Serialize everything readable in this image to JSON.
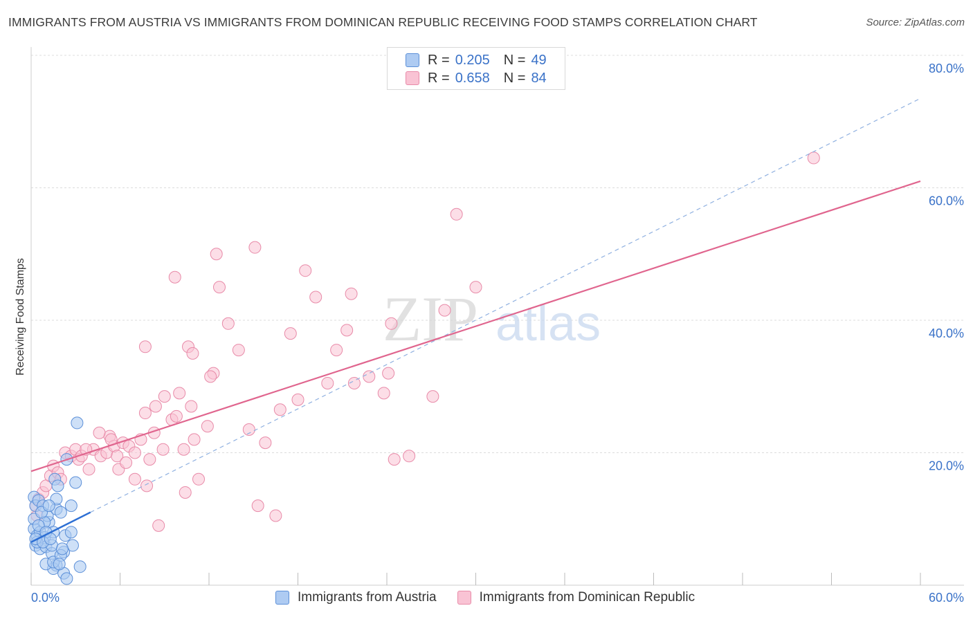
{
  "header": {
    "title": "IMMIGRANTS FROM AUSTRIA VS IMMIGRANTS FROM DOMINICAN REPUBLIC RECEIVING FOOD STAMPS CORRELATION CHART",
    "source": "Source: ZipAtlas.com"
  },
  "watermark": {
    "zip": "ZIP",
    "atlas": "atlas"
  },
  "legend_top": {
    "rows": [
      {
        "r_label": "R =",
        "r_value": "0.205",
        "n_label": "N =",
        "n_value": "49"
      },
      {
        "r_label": "R =",
        "r_value": "0.658",
        "n_label": "N =",
        "n_value": "84"
      }
    ]
  },
  "colors": {
    "austria_fill": "#aecbf2",
    "austria_stroke": "#5b8fd8",
    "austria_line": "#2d6fd4",
    "dominican_fill": "#f9c3d4",
    "dominican_stroke": "#e88aa8",
    "dominican_line": "#e0658e",
    "value_text": "#3a72c8",
    "grid": "#dcdcdc"
  },
  "chart_data": {
    "type": "scatter",
    "title": "IMMIGRANTS FROM AUSTRIA VS IMMIGRANTS FROM DOMINICAN REPUBLIC RECEIVING FOOD STAMPS CORRELATION CHART",
    "xlabel": "",
    "ylabel": "Receiving Food Stamps",
    "xlim": [
      0,
      60
    ],
    "ylim": [
      0,
      80
    ],
    "x_tick_labels": [
      "0.0%",
      "60.0%"
    ],
    "y_tick_labels": [
      "20.0%",
      "40.0%",
      "60.0%",
      "80.0%"
    ],
    "y_ticks": [
      20,
      40,
      60,
      80
    ],
    "grid": true,
    "legend_placement": "top-center",
    "series": [
      {
        "name": "Immigrants from Austria",
        "r": 0.205,
        "n": 49,
        "trend": {
          "x": [
            0,
            4
          ],
          "y": [
            6.5,
            11.0
          ],
          "dashed_extension_to": [
            60,
            73.5
          ]
        },
        "points": [
          [
            0.2,
            13.3
          ],
          [
            0.3,
            12.0
          ],
          [
            0.5,
            12.8
          ],
          [
            0.8,
            12.0
          ],
          [
            0.2,
            8.5
          ],
          [
            0.4,
            7.5
          ],
          [
            0.6,
            8.0
          ],
          [
            0.9,
            7.2
          ],
          [
            0.3,
            6.0
          ],
          [
            0.6,
            5.5
          ],
          [
            1.0,
            5.8
          ],
          [
            1.4,
            4.8
          ],
          [
            1.2,
            9.5
          ],
          [
            1.1,
            10.5
          ],
          [
            1.5,
            8.0
          ],
          [
            1.7,
            11.5
          ],
          [
            1.4,
            6.0
          ],
          [
            1.7,
            13.0
          ],
          [
            2.0,
            11.0
          ],
          [
            2.3,
            7.5
          ],
          [
            1.7,
            3.0
          ],
          [
            1.5,
            2.5
          ],
          [
            1.0,
            3.2
          ],
          [
            1.5,
            3.5
          ],
          [
            1.6,
            16.0
          ],
          [
            1.8,
            15.0
          ],
          [
            2.4,
            19.0
          ],
          [
            3.1,
            24.5
          ],
          [
            2.7,
            12.0
          ],
          [
            2.7,
            8.0
          ],
          [
            2.8,
            6.0
          ],
          [
            2.2,
            5.0
          ],
          [
            2.0,
            4.5
          ],
          [
            2.1,
            5.5
          ],
          [
            2.2,
            1.8
          ],
          [
            2.4,
            1.0
          ],
          [
            1.9,
            3.2
          ],
          [
            3.3,
            2.8
          ],
          [
            0.4,
            6.5
          ],
          [
            0.9,
            9.5
          ],
          [
            0.2,
            10.0
          ],
          [
            0.7,
            11.0
          ],
          [
            1.2,
            12.0
          ],
          [
            0.5,
            9.0
          ],
          [
            1.0,
            8.0
          ],
          [
            0.3,
            7.0
          ],
          [
            0.8,
            6.5
          ],
          [
            1.3,
            7.0
          ],
          [
            3.0,
            15.5
          ]
        ]
      },
      {
        "name": "Immigrants from Dominican Republic",
        "r": 0.658,
        "n": 84,
        "trend": {
          "x": [
            0,
            60
          ],
          "y": [
            17.2,
            61.0
          ]
        },
        "points": [
          [
            0.3,
            12.0
          ],
          [
            0.4,
            10.5
          ],
          [
            0.5,
            13.0
          ],
          [
            0.8,
            14.0
          ],
          [
            1.0,
            15.0
          ],
          [
            1.3,
            16.5
          ],
          [
            1.5,
            18.0
          ],
          [
            1.8,
            17.0
          ],
          [
            2.0,
            16.0
          ],
          [
            2.3,
            20.0
          ],
          [
            2.7,
            19.5
          ],
          [
            3.0,
            20.5
          ],
          [
            3.2,
            19.0
          ],
          [
            3.4,
            19.5
          ],
          [
            3.9,
            17.5
          ],
          [
            4.2,
            20.5
          ],
          [
            4.7,
            19.5
          ],
          [
            5.1,
            20.0
          ],
          [
            5.3,
            22.5
          ],
          [
            5.6,
            21.0
          ],
          [
            5.8,
            19.5
          ],
          [
            5.9,
            17.5
          ],
          [
            6.2,
            21.5
          ],
          [
            6.4,
            18.5
          ],
          [
            6.6,
            21.0
          ],
          [
            7.0,
            20.0
          ],
          [
            7.4,
            22.0
          ],
          [
            7.8,
            15.0
          ],
          [
            8.0,
            19.0
          ],
          [
            8.3,
            23.0
          ],
          [
            8.6,
            9.0
          ],
          [
            8.4,
            27.0
          ],
          [
            9.0,
            28.5
          ],
          [
            8.9,
            20.5
          ],
          [
            7.7,
            26.0
          ],
          [
            7.7,
            36.0
          ],
          [
            9.5,
            25.0
          ],
          [
            9.8,
            25.5
          ],
          [
            10.0,
            29.0
          ],
          [
            10.3,
            20.5
          ],
          [
            10.4,
            14.0
          ],
          [
            10.8,
            27.0
          ],
          [
            11.3,
            16.0
          ],
          [
            11.9,
            24.0
          ],
          [
            12.3,
            32.0
          ],
          [
            12.7,
            45.0
          ],
          [
            13.3,
            39.5
          ],
          [
            10.6,
            36.0
          ],
          [
            10.9,
            35.0
          ],
          [
            12.1,
            31.5
          ],
          [
            12.5,
            50.0
          ],
          [
            14.0,
            35.5
          ],
          [
            14.7,
            23.5
          ],
          [
            15.1,
            51.0
          ],
          [
            15.3,
            12.0
          ],
          [
            15.8,
            21.5
          ],
          [
            16.5,
            10.5
          ],
          [
            16.8,
            26.5
          ],
          [
            17.5,
            38.0
          ],
          [
            18.0,
            28.0
          ],
          [
            18.5,
            47.5
          ],
          [
            19.2,
            43.5
          ],
          [
            20.0,
            30.5
          ],
          [
            20.6,
            35.5
          ],
          [
            21.3,
            38.5
          ],
          [
            21.8,
            30.5
          ],
          [
            21.6,
            44.0
          ],
          [
            22.8,
            31.5
          ],
          [
            23.8,
            29.0
          ],
          [
            24.1,
            32.0
          ],
          [
            24.3,
            39.5
          ],
          [
            24.5,
            19.0
          ],
          [
            25.5,
            19.5
          ],
          [
            27.1,
            28.5
          ],
          [
            27.9,
            41.5
          ],
          [
            28.7,
            56.0
          ],
          [
            30.0,
            45.0
          ],
          [
            52.8,
            64.5
          ],
          [
            5.4,
            22.0
          ],
          [
            9.7,
            46.5
          ],
          [
            7.0,
            16.0
          ],
          [
            11.0,
            22.0
          ],
          [
            3.7,
            20.5
          ],
          [
            4.6,
            23.0
          ]
        ]
      }
    ]
  }
}
